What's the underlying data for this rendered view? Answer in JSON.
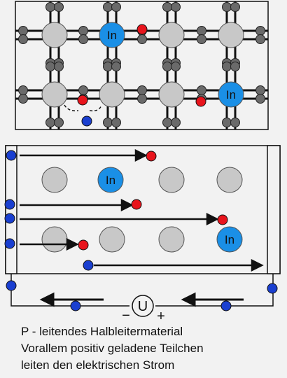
{
  "lattice_label": "In",
  "meter_label": "U",
  "minus_sign": "−",
  "plus_sign": "+",
  "caption": {
    "line1": "P - leitendes Halbleitermaterial",
    "line2": "Vorallem positiv geladene Teilchen",
    "line3": "leiten den elektrischen Strom"
  },
  "colors": {
    "atom": "#c8c8c8",
    "indium": "#1a8fe6",
    "electron_small": "#6a6a6a",
    "hole": "#e8141c",
    "electron_free": "#1a3fd0",
    "background": "#f2f2f2"
  }
}
